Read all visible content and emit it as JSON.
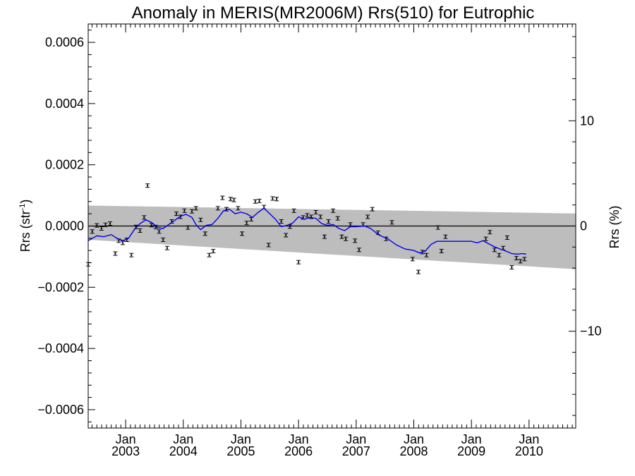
{
  "chart_data": {
    "type": "scatter",
    "title": "Anomaly in MERIS(MR2006M) Rrs(510) for Eutrophic",
    "ylabel_base": "Rrs (str",
    "ylabel_sup": "-1",
    "ylabel_end": ")",
    "y2label": "Rrs (%)",
    "ylim": [
      -0.00066,
      0.00066
    ],
    "y2lim": [
      -19.2,
      19.2
    ],
    "xlim": [
      2002.35,
      2010.81
    ],
    "y_ticks": [
      {
        "value": -0.0006,
        "label": "−0.0006"
      },
      {
        "value": -0.0004,
        "label": "−0.0004"
      },
      {
        "value": -0.0002,
        "label": "−0.0002"
      },
      {
        "value": 0.0,
        "label": "0.0000"
      },
      {
        "value": 0.0002,
        "label": "0.0002"
      },
      {
        "value": 0.0004,
        "label": "0.0004"
      },
      {
        "value": 0.0006,
        "label": "0.0006"
      }
    ],
    "y2_ticks": [
      {
        "value": 10,
        "label": "10"
      },
      {
        "value": 0,
        "label": "0"
      },
      {
        "value": -10,
        "label": "−10"
      }
    ],
    "x_ticks": [
      {
        "value": 2003.0,
        "month": "Jan",
        "year": "2003"
      },
      {
        "value": 2004.0,
        "month": "Jan",
        "year": "2004"
      },
      {
        "value": 2005.0,
        "month": "Jan",
        "year": "2005"
      },
      {
        "value": 2006.0,
        "month": "Jan",
        "year": "2006"
      },
      {
        "value": 2007.0,
        "month": "Jan",
        "year": "2007"
      },
      {
        "value": 2008.0,
        "month": "Jan",
        "year": "2008"
      },
      {
        "value": 2009.0,
        "month": "Jan",
        "year": "2009"
      },
      {
        "value": 2010.0,
        "month": "Jan",
        "year": "2010"
      }
    ],
    "band": {
      "color": "#bdbdbd",
      "upper": [
        [
          2002.35,
          6.7e-05
        ],
        [
          2010.81,
          4.1e-05
        ]
      ],
      "lower": [
        [
          2002.35,
          -4.5e-05
        ],
        [
          2010.81,
          -0.000141
        ]
      ]
    },
    "zero_line": 0,
    "points_color": "#000000",
    "points": [
      [
        2002.35,
        -0.000125
      ],
      [
        2002.42,
        -1.8e-05
      ],
      [
        2002.5,
        2e-06
      ],
      [
        2002.58,
        -8e-06
      ],
      [
        2002.65,
        4e-06
      ],
      [
        2002.73,
        8e-06
      ],
      [
        2002.82,
        -9e-05
      ],
      [
        2002.88,
        -4.8e-05
      ],
      [
        2002.95,
        -5.5e-05
      ],
      [
        2003.02,
        -4.5e-05
      ],
      [
        2003.1,
        -9.5e-05
      ],
      [
        2003.18,
        -3e-06
      ],
      [
        2003.25,
        -1.5e-05
      ],
      [
        2003.32,
        2.8e-05
      ],
      [
        2003.38,
        0.000132
      ],
      [
        2003.45,
        3e-06
      ],
      [
        2003.52,
        -3e-06
      ],
      [
        2003.58,
        -1.8e-05
      ],
      [
        2003.65,
        -4.5e-05
      ],
      [
        2003.72,
        -7.2e-05
      ],
      [
        2003.8,
        1.5e-05
      ],
      [
        2003.88,
        4e-05
      ],
      [
        2003.95,
        3e-05
      ],
      [
        2004.02,
        5e-05
      ],
      [
        2004.08,
        -5e-06
      ],
      [
        2004.15,
        4.8e-05
      ],
      [
        2004.22,
        5.8e-05
      ],
      [
        2004.3,
        2e-05
      ],
      [
        2004.38,
        -2.5e-05
      ],
      [
        2004.45,
        -9.5e-05
      ],
      [
        2004.52,
        -8.2e-05
      ],
      [
        2004.6,
        5.8e-05
      ],
      [
        2004.68,
        9.2e-05
      ],
      [
        2004.75,
        5.5e-05
      ],
      [
        2004.82,
        8.8e-05
      ],
      [
        2004.88,
        8.5e-05
      ],
      [
        2004.95,
        5.8e-05
      ],
      [
        2005.02,
        -2.5e-05
      ],
      [
        2005.1,
        1e-05
      ],
      [
        2005.18,
        2.2e-05
      ],
      [
        2005.25,
        8e-05
      ],
      [
        2005.32,
        8.2e-05
      ],
      [
        2005.4,
        6.2e-05
      ],
      [
        2005.48,
        -6.2e-05
      ],
      [
        2005.55,
        9e-05
      ],
      [
        2005.62,
        8.8e-05
      ],
      [
        2005.7,
        1.5e-05
      ],
      [
        2005.78,
        -3e-05
      ],
      [
        2005.85,
        -2e-06
      ],
      [
        2005.92,
        5e-05
      ],
      [
        2006.0,
        -0.000118
      ],
      [
        2006.08,
        2.8e-05
      ],
      [
        2006.15,
        3.5e-05
      ],
      [
        2006.22,
        3e-05
      ],
      [
        2006.3,
        4.5e-05
      ],
      [
        2006.38,
        3e-05
      ],
      [
        2006.45,
        -3.5e-05
      ],
      [
        2006.52,
        1.5e-05
      ],
      [
        2006.6,
        5e-05
      ],
      [
        2006.68,
        2.5e-05
      ],
      [
        2006.75,
        -3.5e-05
      ],
      [
        2006.82,
        -4.2e-05
      ],
      [
        2006.9,
        5e-06
      ],
      [
        2006.98,
        -4.8e-05
      ],
      [
        2007.05,
        -7.8e-05
      ],
      [
        2007.12,
        5e-06
      ],
      [
        2007.2,
        3e-05
      ],
      [
        2007.28,
        5.5e-05
      ],
      [
        2007.38,
        -2.2e-05
      ],
      [
        2007.52,
        -4.2e-05
      ],
      [
        2007.62,
        1.2e-05
      ],
      [
        2007.98,
        -0.000108
      ],
      [
        2008.08,
        -0.00015
      ],
      [
        2008.15,
        -8.5e-05
      ],
      [
        2008.22,
        -9.5e-05
      ],
      [
        2008.42,
        -5e-06
      ],
      [
        2008.48,
        -8.2e-05
      ],
      [
        2008.55,
        -3.5e-05
      ],
      [
        2009.25,
        -4.2e-05
      ],
      [
        2009.32,
        -2e-05
      ],
      [
        2009.4,
        -7.8e-05
      ],
      [
        2009.48,
        -9.5e-05
      ],
      [
        2009.55,
        -7.2e-05
      ],
      [
        2009.62,
        -3.8e-05
      ],
      [
        2009.7,
        -0.000135
      ],
      [
        2009.78,
        -0.000105
      ],
      [
        2009.85,
        -0.000115
      ],
      [
        2009.92,
        -0.000108
      ]
    ],
    "smooth_color": "#0000ee",
    "smooth": [
      [
        2002.35,
        -4.8e-05
      ],
      [
        2002.5,
        -3.2e-05
      ],
      [
        2002.62,
        -3.5e-05
      ],
      [
        2002.75,
        -2.8e-05
      ],
      [
        2002.85,
        -4e-05
      ],
      [
        2002.95,
        -4.8e-05
      ],
      [
        2003.05,
        -4e-05
      ],
      [
        2003.15,
        -1.2e-05
      ],
      [
        2003.25,
        8e-06
      ],
      [
        2003.35,
        2e-05
      ],
      [
        2003.45,
        1.2e-05
      ],
      [
        2003.55,
        -5e-06
      ],
      [
        2003.65,
        -8e-06
      ],
      [
        2003.75,
        5e-06
      ],
      [
        2003.85,
        1.8e-05
      ],
      [
        2003.95,
        3.2e-05
      ],
      [
        2004.05,
        3.8e-05
      ],
      [
        2004.15,
        2.8e-05
      ],
      [
        2004.22,
        5e-06
      ],
      [
        2004.3,
        -1.2e-05
      ],
      [
        2004.4,
        2e-06
      ],
      [
        2004.5,
        5e-06
      ],
      [
        2004.6,
        2.5e-05
      ],
      [
        2004.7,
        5e-05
      ],
      [
        2004.8,
        5.5e-05
      ],
      [
        2004.9,
        4e-05
      ],
      [
        2005.0,
        4.5e-05
      ],
      [
        2005.1,
        4e-05
      ],
      [
        2005.2,
        2.8e-05
      ],
      [
        2005.3,
        4.5e-05
      ],
      [
        2005.4,
        5.8e-05
      ],
      [
        2005.5,
        4e-05
      ],
      [
        2005.6,
        2.2e-05
      ],
      [
        2005.7,
        -2e-06
      ],
      [
        2005.8,
        2e-06
      ],
      [
        2005.9,
        1e-05
      ],
      [
        2006.0,
        3e-05
      ],
      [
        2006.1,
        2.2e-05
      ],
      [
        2006.2,
        2.8e-05
      ],
      [
        2006.3,
        2.5e-05
      ],
      [
        2006.4,
        8e-06
      ],
      [
        2006.5,
        2e-06
      ],
      [
        2006.6,
        5e-06
      ],
      [
        2006.7,
        -8e-06
      ],
      [
        2006.8,
        -1.5e-05
      ],
      [
        2006.9,
        -2e-06
      ],
      [
        2007.0,
        -2e-06
      ],
      [
        2007.15,
        0.0
      ],
      [
        2007.25,
        -8e-06
      ],
      [
        2007.4,
        -3e-05
      ],
      [
        2007.55,
        -4.2e-05
      ],
      [
        2007.7,
        -6.2e-05
      ],
      [
        2007.85,
        -7.5e-05
      ],
      [
        2008.0,
        -8e-05
      ],
      [
        2008.1,
        -8.8e-05
      ],
      [
        2008.2,
        -8.2e-05
      ],
      [
        2008.3,
        -6e-05
      ],
      [
        2008.4,
        -5e-05
      ],
      [
        2008.55,
        -5e-05
      ],
      [
        2008.7,
        -5e-05
      ],
      [
        2008.85,
        -5e-05
      ],
      [
        2009.0,
        -5e-05
      ],
      [
        2009.1,
        -5.5e-05
      ],
      [
        2009.2,
        -4.8e-05
      ],
      [
        2009.3,
        -5.8e-05
      ],
      [
        2009.4,
        -6.8e-05
      ],
      [
        2009.5,
        -7.5e-05
      ],
      [
        2009.6,
        -8.2e-05
      ],
      [
        2009.7,
        -9e-05
      ],
      [
        2009.8,
        -9.2e-05
      ],
      [
        2009.88,
        -9e-05
      ],
      [
        2009.95,
        -9.2e-05
      ]
    ]
  }
}
